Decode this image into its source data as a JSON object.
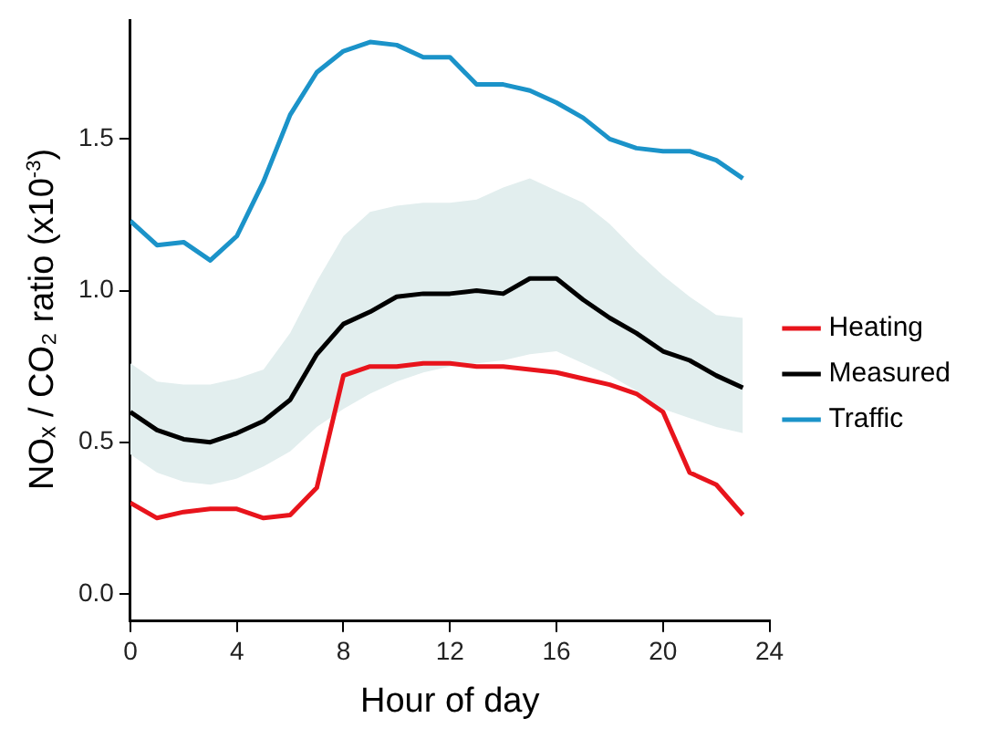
{
  "chart_data": {
    "type": "line",
    "xlabel": "Hour of day",
    "ylabel": "NOₓ / CO₂ ratio (x10$^{-3}$)",
    "x": [
      0,
      1,
      2,
      3,
      4,
      5,
      6,
      7,
      8,
      9,
      10,
      11,
      12,
      13,
      14,
      15,
      16,
      17,
      18,
      19,
      20,
      21,
      22,
      23
    ],
    "xlim": [
      0,
      24
    ],
    "xticks": [
      0,
      4,
      8,
      12,
      16,
      20,
      24
    ],
    "ylim": [
      -0.09,
      1.89
    ],
    "yticks": [
      {
        "value": 0,
        "label": "0.0"
      },
      0.5,
      {
        "value": 1,
        "label": "1.0"
      },
      1.5
    ],
    "grid": false,
    "legend": "right",
    "marker": "none",
    "line_style": "solid",
    "series": [
      {
        "name": "Heating",
        "color": "#e8141c",
        "values": [
          0.3,
          0.25,
          0.27,
          0.28,
          0.28,
          0.25,
          0.26,
          0.35,
          0.72,
          0.75,
          0.75,
          0.76,
          0.76,
          0.75,
          0.75,
          0.74,
          0.73,
          0.71,
          0.69,
          0.66,
          0.6,
          0.4,
          0.36,
          0.26
        ]
      },
      {
        "name": "Measured",
        "color": "#000000",
        "values": [
          0.6,
          0.54,
          0.51,
          0.5,
          0.53,
          0.57,
          0.64,
          0.79,
          0.89,
          0.93,
          0.98,
          0.99,
          0.99,
          1.0,
          0.99,
          1.04,
          1.04,
          0.97,
          0.91,
          0.86,
          0.8,
          0.77,
          0.72,
          0.68
        ],
        "lower": [
          0.46,
          0.4,
          0.37,
          0.36,
          0.38,
          0.42,
          0.47,
          0.55,
          0.61,
          0.66,
          0.7,
          0.73,
          0.75,
          0.76,
          0.77,
          0.79,
          0.8,
          0.76,
          0.72,
          0.67,
          0.61,
          0.58,
          0.55,
          0.53
        ],
        "upper": [
          0.76,
          0.7,
          0.69,
          0.69,
          0.71,
          0.74,
          0.86,
          1.03,
          1.18,
          1.26,
          1.28,
          1.29,
          1.29,
          1.3,
          1.34,
          1.37,
          1.33,
          1.29,
          1.22,
          1.13,
          1.05,
          0.98,
          0.92,
          0.91
        ]
      },
      {
        "name": "Traffic",
        "color": "#1b93c9",
        "values": [
          1.23,
          1.15,
          1.16,
          1.1,
          1.18,
          1.36,
          1.58,
          1.72,
          1.79,
          1.82,
          1.81,
          1.77,
          1.77,
          1.68,
          1.68,
          1.66,
          1.62,
          1.57,
          1.5,
          1.47,
          1.46,
          1.46,
          1.43,
          1.37
        ]
      }
    ]
  }
}
